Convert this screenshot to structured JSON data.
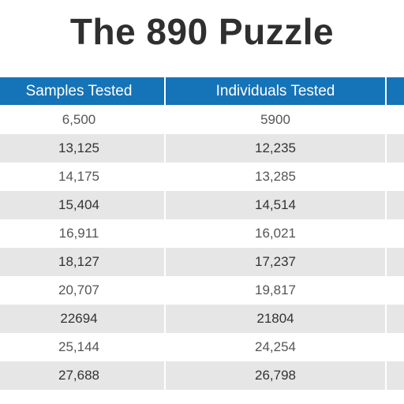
{
  "title": "The 890 Puzzle",
  "table": {
    "headers": [
      "Samples Tested",
      "Individuals Tested",
      ""
    ],
    "rows": [
      {
        "samples": "6,500",
        "individuals": "5900"
      },
      {
        "samples": "13,125",
        "individuals": "12,235"
      },
      {
        "samples": "14,175",
        "individuals": "13,285"
      },
      {
        "samples": "15,404",
        "individuals": "14,514"
      },
      {
        "samples": "16,911",
        "individuals": "16,021"
      },
      {
        "samples": "18,127",
        "individuals": "17,237"
      },
      {
        "samples": "20,707",
        "individuals": "19,817"
      },
      {
        "samples": "22694",
        "individuals": "21804"
      },
      {
        "samples": "25,144",
        "individuals": "24,254"
      },
      {
        "samples": "27,688",
        "individuals": "26,798"
      }
    ]
  },
  "colors": {
    "header_bg": "#1573b8",
    "stripe": "#e6e6e6",
    "title_text": "#2f2f2f"
  }
}
